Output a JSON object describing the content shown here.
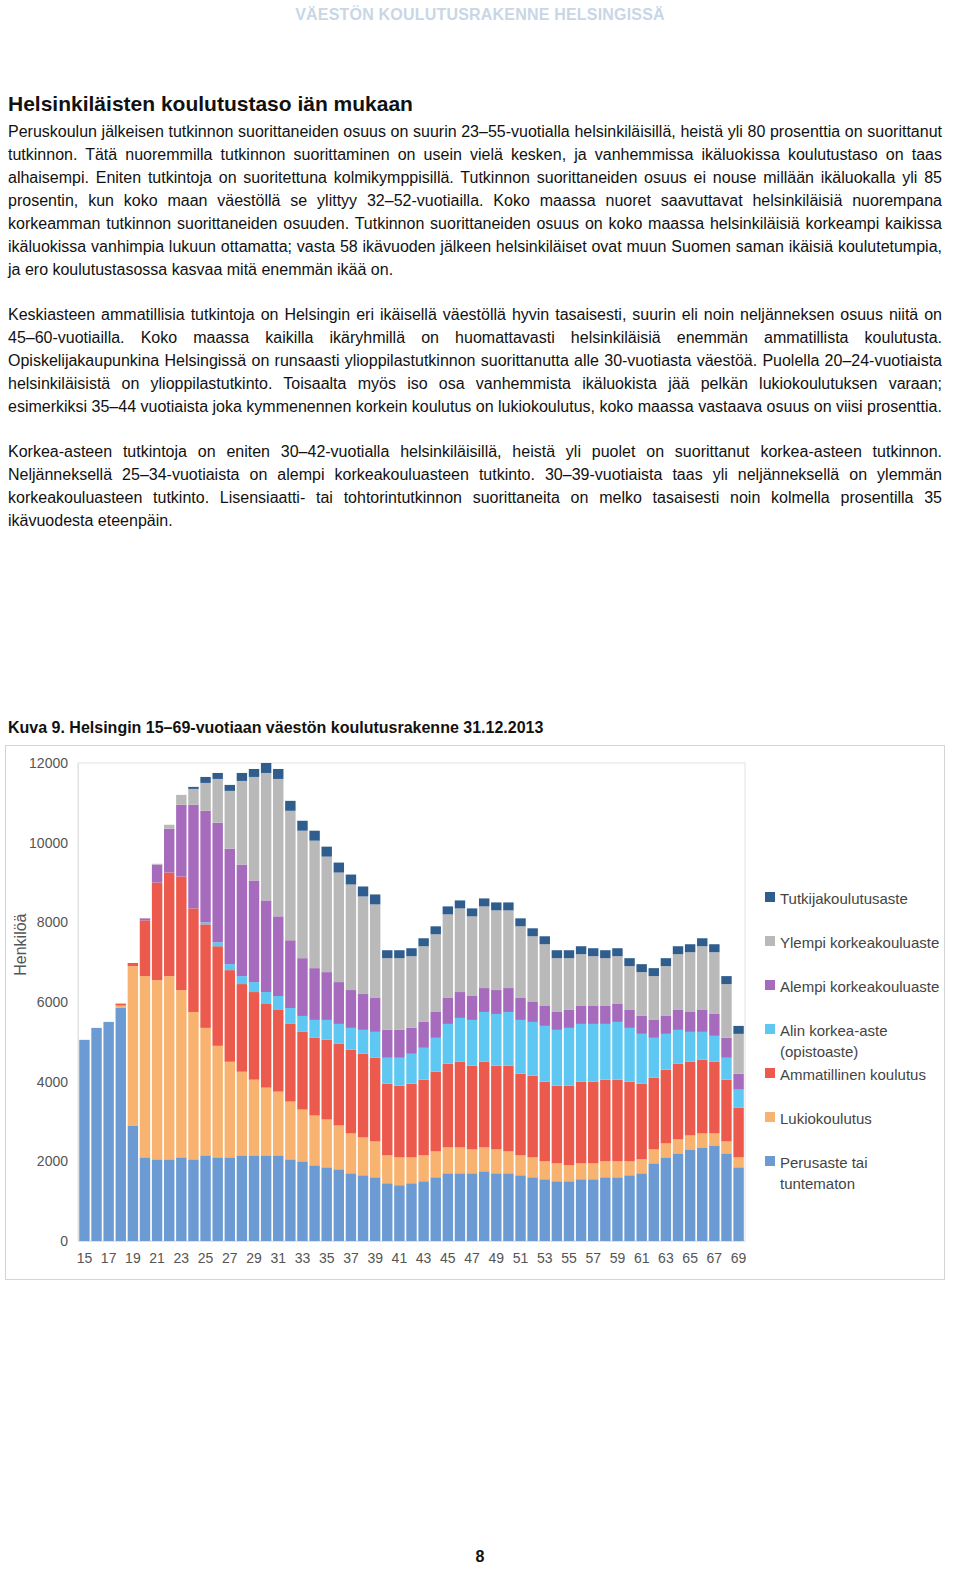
{
  "header": "VÄESTÖN KOULUTUSRAKENNE HELSINGISSÄ",
  "heading": "Helsinkiläisten koulutustaso iän mukaan",
  "paragraphs": [
    "Peruskoulun jälkeisen tutkinnon suorittaneiden osuus on suurin 23–55-vuotialla helsinkiläisillä, heistä yli 80 prosenttia on suorittanut tutkinnon. Tätä nuoremmilla tutkinnon suorittaminen on usein vielä kesken, ja vanhemmissa ikäluokissa koulutustaso on taas alhaisempi. Eniten tutkintoja on suoritettuna kolmikymppisillä. Tutkinnon suorittaneiden osuus ei nouse millään ikäluokalla yli 85 prosentin, kun koko maan väestöllä se ylittyy 32–52-vuotiailla. Koko maassa nuoret saavuttavat helsinkiläisiä nuorempana korkeamman tutkinnon suorittaneiden osuuden. Tutkinnon suorittaneiden osuus on koko maassa helsinkiläisiä korkeampi kaikissa ikäluokissa vanhimpia lukuun ottamatta; vasta 58 ikävuoden jälkeen helsinkiläiset ovat muun Suomen saman ikäisiä koulutetumpia, ja ero koulutustasossa kasvaa mitä enemmän ikää on.",
    "Keskiasteen ammatillisia tutkintoja on Helsingin eri ikäisellä väestöllä hyvin tasaisesti, suurin eli noin neljänneksen osuus niitä on 45–60-vuotiailla. Koko maassa kaikilla ikäryhmillä on huomattavasti helsinkiläisiä enemmän ammatillista koulutusta. Opiskelijakaupunkina Helsingissä on runsaasti ylioppilastutkinnon suorittanutta alle 30-vuotiasta väestöä. Puolella 20–24-vuotiaista helsinkiläisistä on ylioppilastutkinto. Toisaalta myös iso osa vanhemmista ikäluokista jää pelkän lukiokoulutuksen varaan; esimerkiksi 35–44 vuotiaista joka kymmenennen korkein koulutus on lukiokoulutus, koko maassa vastaava osuus on viisi prosenttia.",
    "Korkea-asteen tutkintoja on eniten 30–42-vuotialla helsinkiläisillä, heistä yli puolet on suorittanut korkea-asteen tutkinnon. Neljänneksellä 25–34-vuotiaista on alempi korkeakouluasteen tutkinto. 30–39-vuotiaista taas yli neljänneksellä on ylemmän korkeakouluasteen tutkinto. Lisensiaatti- tai tohtorintutkinnon suorittaneita on melko tasaisesti noin kolmella prosentilla 35 ikävuodesta eteenpäin."
  ],
  "caption": "Kuva 9. Helsingin 15–69-vuotiaan väestön koulutusrakenne 31.12.2013",
  "page_number": "8",
  "chart_data": {
    "type": "bar",
    "stacked": true,
    "grid": false,
    "legend": "right",
    "y_label": "Henkilöä",
    "categories": [
      "15",
      null,
      "17",
      null,
      "19",
      null,
      "21",
      null,
      "23",
      null,
      "25",
      null,
      "27",
      null,
      "29",
      null,
      "31",
      null,
      "33",
      null,
      "35",
      null,
      "37",
      null,
      "39",
      null,
      "41",
      null,
      "43",
      null,
      "45",
      null,
      "47",
      null,
      "49",
      null,
      "51",
      null,
      "53",
      null,
      "55",
      null,
      "57",
      null,
      "59",
      null,
      "61",
      null,
      "63",
      null,
      "65",
      null,
      "67",
      null,
      "69"
    ],
    "ylim": [
      0,
      12000
    ],
    "yticks": [
      0,
      2000,
      4000,
      6000,
      8000,
      10000,
      12000
    ],
    "series": [
      {
        "name": "Perusaste tai tuntematon",
        "color": "#6b9bd2",
        "values": [
          5050,
          5350,
          5500,
          5850,
          2900,
          2100,
          2050,
          2050,
          2100,
          2050,
          2150,
          2100,
          2100,
          2150,
          2150,
          2150,
          2150,
          2050,
          2000,
          1900,
          1850,
          1800,
          1700,
          1650,
          1600,
          1450,
          1400,
          1450,
          1500,
          1600,
          1700,
          1700,
          1700,
          1750,
          1700,
          1700,
          1650,
          1600,
          1550,
          1500,
          1500,
          1550,
          1550,
          1600,
          1600,
          1650,
          1700,
          1950,
          2100,
          2200,
          2300,
          2350,
          2400,
          2200,
          1850
        ]
      },
      {
        "name": "Lukiokoulutus",
        "color": "#f9b370",
        "values": [
          0,
          0,
          0,
          60,
          4000,
          4550,
          4500,
          4600,
          4200,
          3700,
          3200,
          2800,
          2400,
          2100,
          1900,
          1700,
          1600,
          1450,
          1300,
          1250,
          1200,
          1100,
          1000,
          950,
          900,
          700,
          700,
          650,
          650,
          650,
          650,
          650,
          600,
          600,
          600,
          550,
          500,
          500,
          450,
          450,
          400,
          400,
          400,
          400,
          400,
          350,
          350,
          350,
          350,
          350,
          350,
          350,
          300,
          300,
          250
        ]
      },
      {
        "name": "Ammatillinen koulutus",
        "color": "#ec5a4e",
        "values": [
          0,
          0,
          0,
          50,
          80,
          1400,
          2450,
          2600,
          2850,
          2600,
          2600,
          2500,
          2300,
          2200,
          2200,
          2100,
          2050,
          1950,
          1950,
          1950,
          2000,
          2050,
          2100,
          2100,
          2100,
          1800,
          1800,
          1850,
          1900,
          2000,
          2100,
          2150,
          2100,
          2150,
          2100,
          2150,
          2050,
          2050,
          2000,
          1950,
          2000,
          2050,
          2050,
          2050,
          2050,
          2000,
          1900,
          1800,
          1850,
          1900,
          1850,
          1850,
          1800,
          1550,
          1250
        ]
      },
      {
        "name": "Alin korkea-aste (opistoaste)",
        "color": "#5ec8f2",
        "values": [
          0,
          0,
          0,
          0,
          0,
          0,
          0,
          0,
          0,
          0,
          50,
          100,
          150,
          200,
          250,
          300,
          350,
          400,
          400,
          450,
          500,
          500,
          550,
          600,
          650,
          650,
          700,
          750,
          800,
          850,
          1000,
          1100,
          1150,
          1250,
          1300,
          1350,
          1350,
          1350,
          1400,
          1400,
          1450,
          1450,
          1450,
          1400,
          1450,
          1350,
          1250,
          1000,
          900,
          850,
          750,
          700,
          650,
          550,
          450
        ]
      },
      {
        "name": "Alempi korkeakouluaste",
        "color": "#a66bbd",
        "values": [
          0,
          0,
          0,
          0,
          0,
          50,
          450,
          1100,
          1800,
          2600,
          2800,
          3000,
          2900,
          2800,
          2550,
          2300,
          2000,
          1700,
          1450,
          1300,
          1200,
          1050,
          950,
          900,
          850,
          700,
          700,
          650,
          650,
          650,
          650,
          650,
          600,
          600,
          600,
          600,
          550,
          500,
          500,
          450,
          450,
          450,
          450,
          450,
          450,
          450,
          450,
          450,
          450,
          500,
          500,
          550,
          550,
          500,
          400
        ]
      },
      {
        "name": "Ylempi korkeakouluaste",
        "color": "#b9b9b9",
        "values": [
          0,
          0,
          0,
          0,
          0,
          0,
          20,
          100,
          250,
          400,
          700,
          1100,
          1450,
          2100,
          2600,
          3200,
          3450,
          3250,
          3200,
          3200,
          2900,
          2750,
          2650,
          2450,
          2350,
          1800,
          1800,
          1800,
          1900,
          1950,
          2100,
          2100,
          2000,
          2050,
          2000,
          1950,
          1800,
          1650,
          1550,
          1350,
          1300,
          1300,
          1250,
          1200,
          1200,
          1100,
          1100,
          1100,
          1250,
          1400,
          1500,
          1600,
          1550,
          1350,
          1000
        ]
      },
      {
        "name": "Tutkijakoulutusaste",
        "color": "#2f5e8e",
        "values": [
          0,
          0,
          0,
          0,
          0,
          0,
          0,
          0,
          0,
          50,
          150,
          150,
          150,
          200,
          200,
          250,
          250,
          250,
          250,
          250,
          250,
          250,
          250,
          250,
          250,
          200,
          200,
          200,
          200,
          200,
          200,
          200,
          200,
          200,
          200,
          200,
          200,
          200,
          200,
          200,
          200,
          200,
          200,
          200,
          200,
          200,
          200,
          200,
          200,
          200,
          200,
          200,
          200,
          200,
          200
        ]
      }
    ]
  }
}
